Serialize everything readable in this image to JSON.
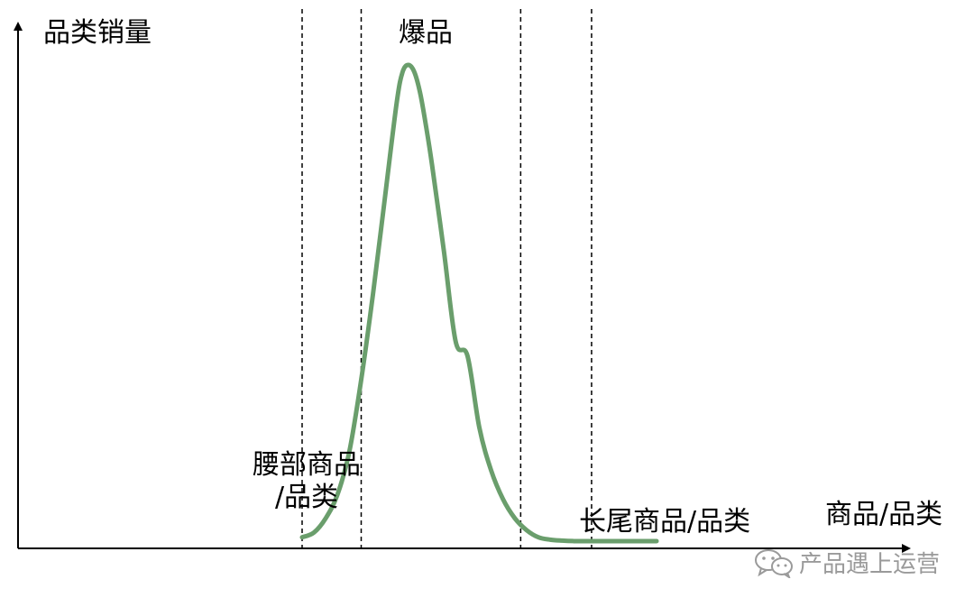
{
  "chart_data": {
    "type": "line",
    "title": "",
    "ylabel": "品类销量",
    "xlabel": "商品/品类",
    "grid": false,
    "series": [
      {
        "name": "",
        "color": "#6a9e6c",
        "x": [
          0.0,
          0.1,
          0.2,
          0.3,
          0.4,
          0.5,
          0.6,
          0.7,
          0.8,
          0.85,
          0.9,
          0.95,
          1.0,
          1.05,
          1.1,
          1.2,
          1.3,
          1.4,
          1.5,
          1.6,
          1.7,
          1.8,
          1.9,
          2.0,
          2.1,
          2.2,
          2.3,
          2.4,
          2.5,
          2.6,
          2.7,
          2.8,
          2.9,
          3.0
        ],
        "y": [
          0.01,
          0.02,
          0.05,
          0.1,
          0.19,
          0.34,
          0.52,
          0.72,
          0.92,
          0.985,
          1.0,
          0.985,
          0.94,
          0.87,
          0.79,
          0.61,
          0.42,
          0.39,
          0.24,
          0.15,
          0.09,
          0.05,
          0.025,
          0.01,
          0.005,
          0.003,
          0.002,
          0.002,
          0.002,
          0.002,
          0.002,
          0.002,
          0.002,
          0.002
        ]
      }
    ],
    "regions": [
      {
        "label": "腰部商品\n/品类",
        "label_lines": [
          "腰部商品",
          "/品类"
        ],
        "x_start": 0.0,
        "x_end": 0.5
      },
      {
        "label": "爆品",
        "x_start": 0.5,
        "x_end": 1.85
      },
      {
        "label": "",
        "x_start": 1.85,
        "x_end": 2.45
      },
      {
        "label": "长尾商品/品类",
        "x_start": 2.45,
        "x_end": null
      }
    ],
    "dividers_x": [
      0.0,
      0.5,
      1.85,
      2.45
    ]
  },
  "watermark": {
    "text": "产品遇上运营",
    "icon": "wechat-icon",
    "color": "#9a9a9a"
  }
}
